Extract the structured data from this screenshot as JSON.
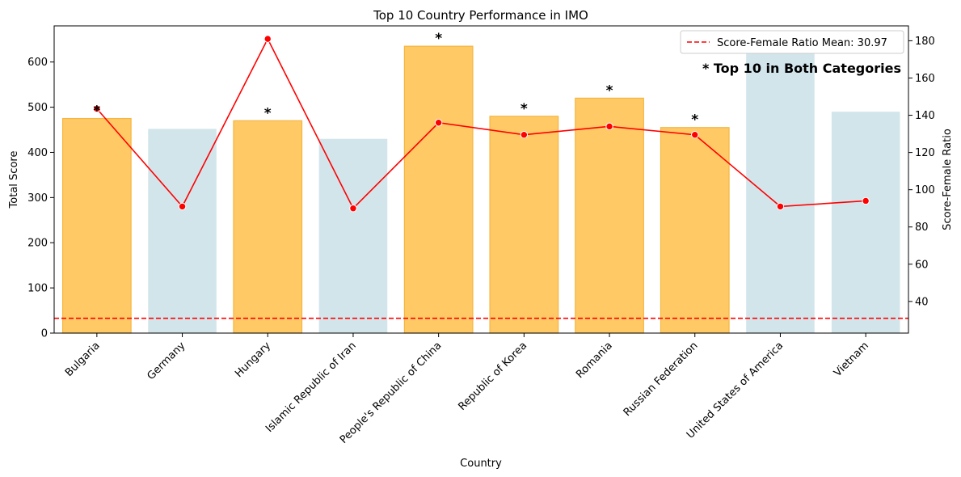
{
  "chart_data": {
    "type": "bar",
    "title": "Top 10 Country Performance in IMO",
    "xlabel": "Country",
    "ylabel": "Total Score",
    "y2label": "Score-Female Ratio",
    "ylim": [
      0,
      680
    ],
    "y2lim": [
      23,
      188
    ],
    "yticks": [
      0,
      100,
      200,
      300,
      400,
      500,
      600
    ],
    "y2ticks": [
      40,
      60,
      80,
      100,
      120,
      140,
      160,
      180
    ],
    "categories": [
      "Bulgaria",
      "Germany",
      "Hungary",
      "Islamic Republic of Iran",
      "People's Republic of China",
      "Republic of Korea",
      "Romania",
      "Russian Federation",
      "United States of America",
      "Vietnam"
    ],
    "series": [
      {
        "kind": "bar",
        "axis": "left",
        "values": [
          475,
          452,
          470,
          430,
          635,
          480,
          520,
          455,
          640,
          490
        ],
        "highlight": [
          true,
          false,
          true,
          false,
          true,
          true,
          true,
          true,
          false,
          false
        ]
      },
      {
        "kind": "line",
        "axis": "right",
        "values": [
          143.5,
          91,
          181,
          90,
          136,
          129.5,
          134,
          129.5,
          91,
          94
        ]
      }
    ],
    "reference_line": {
      "axis": "right",
      "value": 30.97,
      "label": "Score-Female Ratio Mean: 30.97"
    },
    "star_marker": "*",
    "annotation": "* Top 10 in Both Categories",
    "legend_position": "top-right",
    "grid": false,
    "colors": {
      "highlight_bar": "#ffc966",
      "highlight_bar_edge": "#f4b640",
      "normal_bar": "#d2e5eb",
      "line": "#ff0000",
      "reference": "#ff0000"
    }
  }
}
